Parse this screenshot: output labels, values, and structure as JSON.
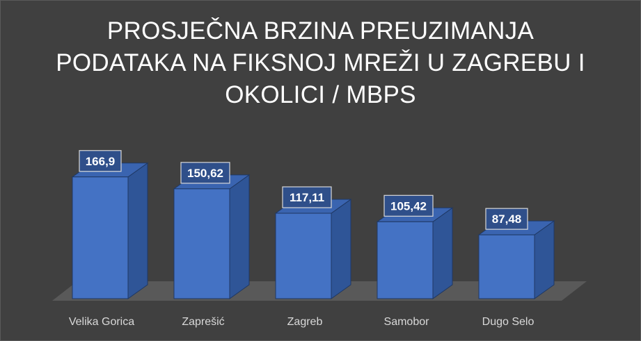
{
  "chart_data": {
    "type": "bar",
    "title_lines": [
      "PROSJEČNA BRZINA PREUZIMANJA",
      "PODATAKA NA FIKSNOJ MREŽI U ZAGREBU I",
      "OKOLICI / MBPS"
    ],
    "categories": [
      "Velika Gorica",
      "Zaprešić",
      "Zagreb",
      "Samobor",
      "Dugo Selo"
    ],
    "values": [
      166.9,
      150.62,
      117.11,
      105.42,
      87.48
    ],
    "data_labels": [
      "166,9",
      "150,62",
      "117,11",
      "105,42",
      "87,48"
    ],
    "ylim": [
      0,
      200
    ],
    "grid": false,
    "legend": "none",
    "colors": {
      "background": "#404040",
      "bar_front": "#4472c4",
      "bar_side": "#2f5597",
      "bar_top": "#3a64b0",
      "bar_edge": "#1f3864",
      "floor": "#595959",
      "label_box": "#2f4f8a",
      "label_border": "#d9d9d9",
      "text": "#ffffff",
      "axis_text": "#d9d9d9"
    }
  }
}
